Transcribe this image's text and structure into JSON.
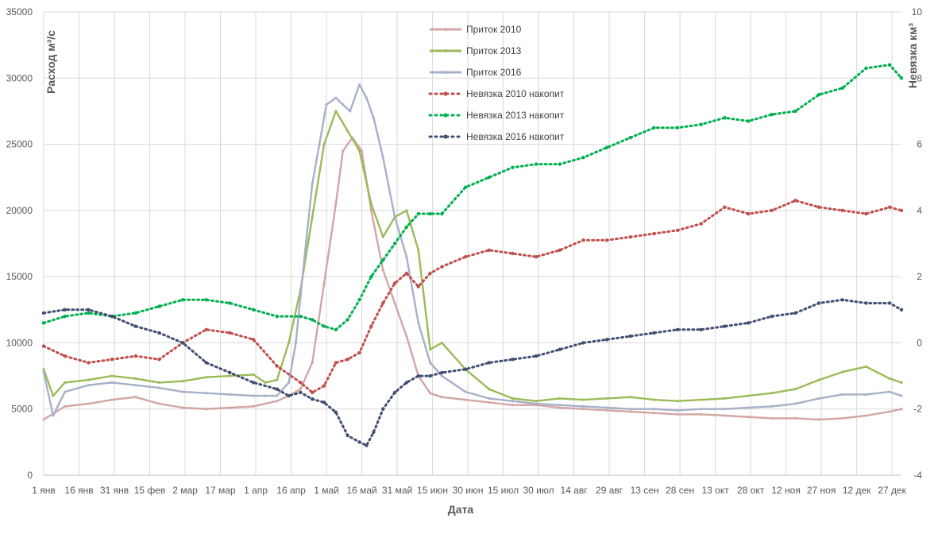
{
  "chart_data": {
    "type": "line",
    "xlabel": "Дата",
    "ylabel_left": "Расход м³/с",
    "ylabel_right": "Невязка км³",
    "y_left_ticks": [
      "0",
      "5000",
      "10000",
      "15000",
      "20000",
      "25000",
      "30000",
      "35000"
    ],
    "y_right_ticks": [
      "-4",
      "-2",
      "0",
      "2",
      "4",
      "6",
      "8",
      "10"
    ],
    "ylim_left": [
      0,
      35000
    ],
    "ylim_right": [
      -4,
      10
    ],
    "x_ticks": [
      "1 янв",
      "16 янв",
      "31 янв",
      "15 фев",
      "2 мар",
      "17 мар",
      "1 апр",
      "16 апр",
      "1 май",
      "16 май",
      "31 май",
      "15 июн",
      "30 июн",
      "15 июл",
      "30 июл",
      "14 авг",
      "29 авг",
      "13 сен",
      "28 сен",
      "13 окт",
      "28 окт",
      "12 ноя",
      "27 ноя",
      "12 дек",
      "27 дек"
    ],
    "x_tick_days": [
      1,
      16,
      31,
      46,
      61,
      76,
      91,
      106,
      121,
      136,
      151,
      166,
      181,
      196,
      211,
      226,
      241,
      256,
      271,
      286,
      301,
      316,
      331,
      346,
      361
    ],
    "xlim": [
      1,
      365
    ],
    "grid": true,
    "legend_position": "top-center",
    "series": [
      {
        "name": "Приток 2010",
        "axis": "left",
        "style": "solid",
        "color": "#d4a5a5",
        "x": [
          1,
          10,
          20,
          30,
          40,
          50,
          60,
          70,
          80,
          90,
          100,
          105,
          110,
          115,
          120,
          125,
          128,
          132,
          136,
          140,
          145,
          150,
          155,
          160,
          165,
          170,
          180,
          190,
          200,
          210,
          220,
          230,
          240,
          250,
          260,
          270,
          280,
          290,
          300,
          310,
          320,
          330,
          340,
          350,
          360,
          365
        ],
        "y": [
          4200,
          5200,
          5400,
          5700,
          5900,
          5400,
          5100,
          5000,
          5100,
          5200,
          5600,
          6000,
          6500,
          8500,
          14500,
          20500,
          24500,
          25500,
          24500,
          20000,
          15500,
          13000,
          10500,
          7500,
          6200,
          5900,
          5700,
          5500,
          5300,
          5300,
          5100,
          5000,
          4900,
          4800,
          4700,
          4600,
          4600,
          4500,
          4400,
          4300,
          4300,
          4200,
          4300,
          4500,
          4800,
          5000
        ]
      },
      {
        "name": "Приток 2013",
        "axis": "left",
        "style": "solid",
        "color": "#9bbb59",
        "x": [
          1,
          5,
          10,
          20,
          30,
          40,
          50,
          60,
          70,
          80,
          90,
          95,
          100,
          105,
          110,
          115,
          120,
          125,
          130,
          135,
          140,
          145,
          150,
          155,
          160,
          165,
          170,
          180,
          190,
          200,
          210,
          220,
          230,
          240,
          250,
          260,
          270,
          280,
          290,
          300,
          310,
          320,
          330,
          340,
          350,
          360,
          365
        ],
        "y": [
          8000,
          6000,
          7000,
          7200,
          7500,
          7300,
          7000,
          7100,
          7400,
          7500,
          7600,
          7000,
          7200,
          10000,
          14000,
          19500,
          25000,
          27500,
          26000,
          24500,
          20500,
          18000,
          19500,
          20000,
          17000,
          9500,
          10000,
          8000,
          6500,
          5800,
          5600,
          5800,
          5700,
          5800,
          5900,
          5700,
          5600,
          5700,
          5800,
          6000,
          6200,
          6500,
          7200,
          7800,
          8200,
          7300,
          7000
        ]
      },
      {
        "name": "Приток 2016",
        "axis": "left",
        "style": "solid",
        "color": "#a6b0c8",
        "x": [
          1,
          5,
          10,
          20,
          30,
          40,
          50,
          60,
          70,
          80,
          90,
          95,
          100,
          105,
          108,
          112,
          115,
          118,
          121,
          125,
          128,
          131,
          135,
          138,
          141,
          145,
          150,
          155,
          160,
          165,
          170,
          180,
          190,
          200,
          210,
          220,
          230,
          240,
          250,
          260,
          270,
          280,
          290,
          300,
          310,
          320,
          330,
          340,
          350,
          360,
          365
        ],
        "y": [
          7800,
          4500,
          6300,
          6800,
          7000,
          6800,
          6600,
          6300,
          6200,
          6100,
          6000,
          6000,
          6000,
          7000,
          10000,
          17000,
          22000,
          25000,
          28000,
          28500,
          28000,
          27500,
          29500,
          28500,
          27000,
          24000,
          19500,
          16500,
          11500,
          8500,
          7500,
          6300,
          5800,
          5600,
          5400,
          5300,
          5200,
          5100,
          5000,
          5000,
          4900,
          5000,
          5000,
          5100,
          5200,
          5400,
          5800,
          6100,
          6100,
          6300,
          6000
        ]
      },
      {
        "name": "Невязка 2010 накопит",
        "axis": "right",
        "style": "dashed",
        "color": "#c0504d",
        "x": [
          1,
          10,
          20,
          30,
          40,
          50,
          60,
          70,
          80,
          90,
          100,
          110,
          115,
          120,
          125,
          130,
          135,
          140,
          145,
          150,
          155,
          160,
          165,
          170,
          180,
          190,
          200,
          210,
          220,
          230,
          240,
          250,
          260,
          270,
          280,
          290,
          300,
          310,
          320,
          330,
          340,
          350,
          360,
          365
        ],
        "y": [
          -0.1,
          -0.4,
          -0.6,
          -0.5,
          -0.4,
          -0.5,
          0.0,
          0.4,
          0.3,
          0.1,
          -0.7,
          -1.2,
          -1.5,
          -1.3,
          -0.6,
          -0.5,
          -0.3,
          0.5,
          1.2,
          1.8,
          2.1,
          1.7,
          2.1,
          2.3,
          2.6,
          2.8,
          2.7,
          2.6,
          2.8,
          3.1,
          3.1,
          3.2,
          3.3,
          3.4,
          3.6,
          4.1,
          3.9,
          4.0,
          4.3,
          4.1,
          4.0,
          3.9,
          4.1,
          4.0
        ]
      },
      {
        "name": "Невязка 2013 накопит",
        "axis": "right",
        "style": "dashed",
        "color": "#00b050",
        "x": [
          1,
          10,
          20,
          30,
          40,
          50,
          60,
          70,
          80,
          90,
          100,
          110,
          115,
          120,
          125,
          130,
          135,
          140,
          145,
          150,
          155,
          160,
          165,
          170,
          180,
          190,
          200,
          210,
          220,
          230,
          240,
          250,
          260,
          270,
          280,
          290,
          300,
          310,
          320,
          330,
          340,
          350,
          360,
          365
        ],
        "y": [
          0.6,
          0.8,
          0.9,
          0.8,
          0.9,
          1.1,
          1.3,
          1.3,
          1.2,
          1.0,
          0.8,
          0.8,
          0.7,
          0.5,
          0.4,
          0.7,
          1.3,
          2.0,
          2.5,
          3.0,
          3.5,
          3.9,
          3.9,
          3.9,
          4.7,
          5.0,
          5.3,
          5.4,
          5.4,
          5.6,
          5.9,
          6.2,
          6.5,
          6.5,
          6.6,
          6.8,
          6.7,
          6.9,
          7.0,
          7.5,
          7.7,
          8.3,
          8.4,
          8.0
        ]
      },
      {
        "name": "Невязка 2016 накопит",
        "axis": "right",
        "style": "dashed",
        "color": "#404f72",
        "x": [
          1,
          10,
          20,
          30,
          40,
          50,
          60,
          70,
          80,
          90,
          100,
          105,
          110,
          115,
          120,
          125,
          130,
          135,
          138,
          141,
          145,
          150,
          155,
          160,
          165,
          170,
          180,
          190,
          200,
          210,
          220,
          230,
          240,
          250,
          260,
          270,
          280,
          290,
          300,
          310,
          320,
          330,
          340,
          350,
          360,
          365
        ],
        "y": [
          0.9,
          1.0,
          1.0,
          0.8,
          0.5,
          0.3,
          0.0,
          -0.6,
          -0.9,
          -1.2,
          -1.4,
          -1.6,
          -1.5,
          -1.7,
          -1.8,
          -2.1,
          -2.8,
          -3.0,
          -3.1,
          -2.7,
          -2.0,
          -1.5,
          -1.2,
          -1.0,
          -1.0,
          -0.9,
          -0.8,
          -0.6,
          -0.5,
          -0.4,
          -0.2,
          0.0,
          0.1,
          0.2,
          0.3,
          0.4,
          0.4,
          0.5,
          0.6,
          0.8,
          0.9,
          1.2,
          1.3,
          1.2,
          1.2,
          1.0
        ]
      }
    ]
  }
}
